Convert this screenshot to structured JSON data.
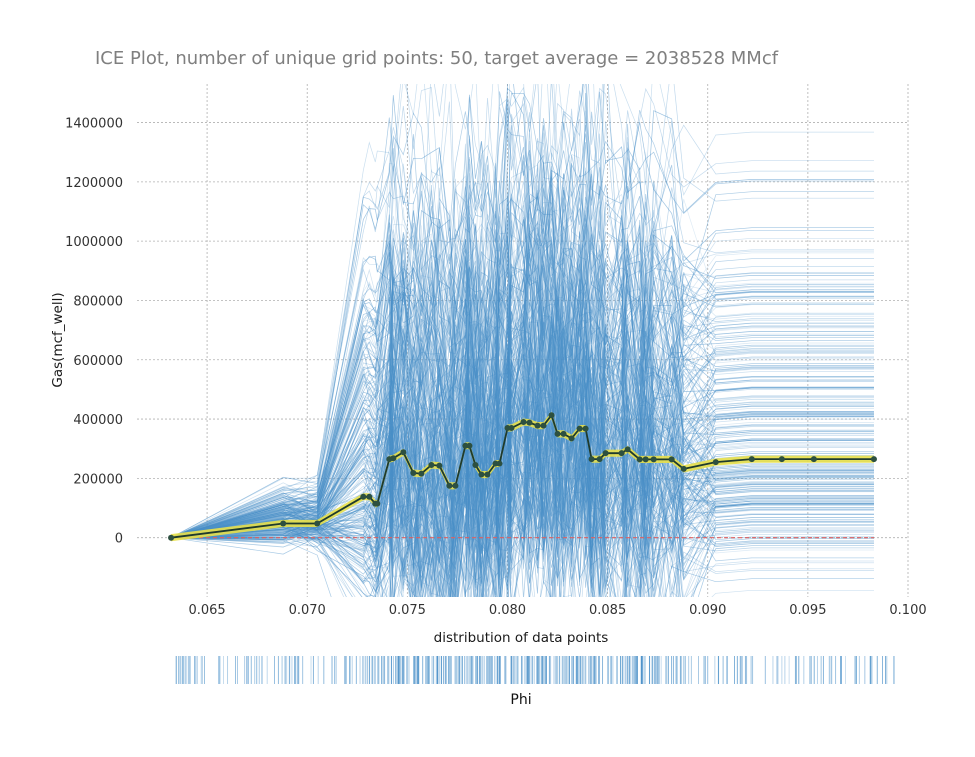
{
  "chart_data": {
    "type": "line",
    "title": "ICE Plot, number of unique grid points: 50, target average = 2038528 MMcf",
    "ylabel": "Gas(mcf_well)",
    "xlabel": "distribution of data points",
    "rug_label": "Phi",
    "xlim": [
      0.0615,
      0.1
    ],
    "ylim": [
      -200000,
      1530000
    ],
    "x_ticks": [
      0.065,
      0.07,
      0.075,
      0.08,
      0.085,
      0.09,
      0.095,
      0.1
    ],
    "x_tick_labels": [
      "0.065",
      "0.070",
      "0.075",
      "0.080",
      "0.085",
      "0.090",
      "0.095",
      "0.100"
    ],
    "y_ticks": [
      0,
      200000,
      400000,
      600000,
      800000,
      1000000,
      1200000,
      1400000
    ],
    "y_tick_labels": [
      "0",
      "200000",
      "400000",
      "600000",
      "800000",
      "1000000",
      "1200000",
      "1400000"
    ],
    "grid": true,
    "reference_line": 0,
    "series": [
      {
        "x": [
          0.0632,
          0.0688,
          0.0705,
          0.0728,
          0.0731,
          0.0734,
          0.0735,
          0.0741,
          0.0743,
          0.0748,
          0.0753,
          0.0757,
          0.0762,
          0.0766,
          0.0771,
          0.0774,
          0.0779,
          0.0781,
          0.0784,
          0.0787,
          0.079,
          0.0794,
          0.0796,
          0.08,
          0.0802,
          0.0808,
          0.0811,
          0.0815,
          0.0818,
          0.0822,
          0.0825,
          0.0828,
          0.0832,
          0.0836,
          0.0839,
          0.0842,
          0.0846,
          0.0849,
          0.0857,
          0.086,
          0.0866,
          0.0869,
          0.0873,
          0.0882,
          0.0888,
          0.0904,
          0.0922,
          0.0937,
          0.0953,
          0.0983
        ],
        "values": [
          0,
          48000,
          48000,
          138000,
          138000,
          115000,
          115000,
          265000,
          268000,
          288000,
          218000,
          216000,
          245000,
          243000,
          175000,
          175000,
          310000,
          310000,
          245000,
          213000,
          213000,
          250000,
          250000,
          370000,
          370000,
          390000,
          388000,
          378000,
          378000,
          413000,
          350000,
          350000,
          335000,
          368000,
          368000,
          265000,
          265000,
          285000,
          285000,
          298000,
          264000,
          264000,
          264000,
          264000,
          232000,
          255000,
          265000,
          265000,
          265000,
          265000
        ]
      }
    ],
    "colors": {
      "ice_lines": "#4a90c8",
      "average_band": "#e8e04a",
      "average_line": "#1e3a2e",
      "average_markers": "#2d5040",
      "reference": "#e06060",
      "rug": "#4a90c8"
    }
  }
}
